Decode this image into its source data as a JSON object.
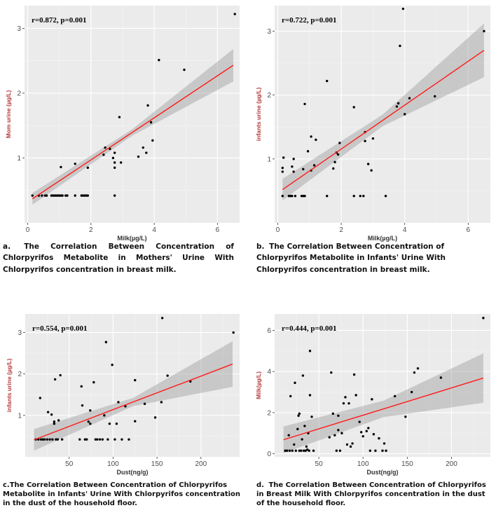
{
  "chart_data": [
    {
      "id": "a",
      "type": "scatter",
      "annotation": "r=0.872, p=0.001",
      "xlabel": "Milk(µg/L)",
      "ylabel": "Mom urine (µg/L)",
      "xlim": [
        -0.1,
        6.7
      ],
      "ylim": [
        0.0,
        3.35
      ],
      "xticks": [
        0,
        2,
        4,
        6
      ],
      "yticks": [
        1,
        2,
        3
      ],
      "fit": {
        "x0": 0.15,
        "y0": 0.37,
        "x1": 6.5,
        "y1": 2.43,
        "ci_x": [
          0.15,
          3.3,
          6.5
        ],
        "ci_half": [
          0.09,
          0.05,
          0.25
        ]
      },
      "points": [
        [
          0.15,
          0.42
        ],
        [
          0.35,
          0.42
        ],
        [
          0.45,
          0.42
        ],
        [
          0.55,
          0.42
        ],
        [
          0.6,
          0.42
        ],
        [
          0.75,
          0.42
        ],
        [
          0.8,
          0.42
        ],
        [
          0.85,
          0.42
        ],
        [
          0.9,
          0.42
        ],
        [
          0.95,
          0.42
        ],
        [
          1.0,
          0.42
        ],
        [
          1.05,
          0.42
        ],
        [
          1.1,
          0.42
        ],
        [
          1.2,
          0.42
        ],
        [
          1.25,
          0.42
        ],
        [
          1.5,
          0.42
        ],
        [
          1.7,
          0.42
        ],
        [
          1.75,
          0.42
        ],
        [
          1.8,
          0.42
        ],
        [
          1.85,
          0.42
        ],
        [
          1.9,
          0.42
        ],
        [
          2.75,
          0.42
        ],
        [
          1.05,
          0.86
        ],
        [
          1.5,
          0.91
        ],
        [
          1.9,
          0.85
        ],
        [
          2.4,
          1.05
        ],
        [
          2.45,
          1.16
        ],
        [
          2.6,
          1.14
        ],
        [
          2.7,
          1.0
        ],
        [
          2.75,
          0.93
        ],
        [
          2.75,
          0.85
        ],
        [
          2.75,
          1.08
        ],
        [
          2.9,
          1.63
        ],
        [
          2.95,
          0.93
        ],
        [
          3.5,
          1.02
        ],
        [
          3.65,
          1.16
        ],
        [
          3.75,
          1.08
        ],
        [
          3.8,
          1.81
        ],
        [
          3.9,
          1.55
        ],
        [
          3.95,
          1.27
        ],
        [
          4.15,
          2.51
        ],
        [
          4.95,
          2.36
        ],
        [
          6.55,
          3.22
        ]
      ],
      "caption_tag": "a.",
      "caption": "The Correlation Between Concentration of Chlorpyrifos Metabolite in Mothers' Urine With Chlorpyrifos concentration in breast milk."
    },
    {
      "id": "b",
      "type": "scatter",
      "annotation": "r=0.722, p=0.001",
      "xlabel": "Milk(µg/L)",
      "ylabel": "infants urine (µg/L)",
      "xlim": [
        -0.1,
        6.7
      ],
      "ylim": [
        0.0,
        3.4
      ],
      "xticks": [
        0,
        2,
        4,
        6
      ],
      "yticks": [
        1,
        2,
        3
      ],
      "fit": {
        "x0": 0.15,
        "y0": 0.52,
        "x1": 6.5,
        "y1": 2.7,
        "ci_x": [
          0.15,
          3.3,
          6.5
        ],
        "ci_half": [
          0.17,
          0.09,
          0.42
        ]
      },
      "points": [
        [
          0.15,
          0.42
        ],
        [
          0.15,
          0.8
        ],
        [
          0.15,
          0.86
        ],
        [
          0.18,
          1.02
        ],
        [
          0.35,
          0.42
        ],
        [
          0.4,
          0.42
        ],
        [
          0.45,
          0.42
        ],
        [
          0.45,
          0.88
        ],
        [
          0.5,
          0.8
        ],
        [
          0.5,
          1.0
        ],
        [
          0.55,
          0.42
        ],
        [
          0.75,
          0.42
        ],
        [
          0.8,
          0.42
        ],
        [
          0.85,
          0.42
        ],
        [
          0.8,
          0.84
        ],
        [
          0.85,
          1.86
        ],
        [
          0.95,
          1.12
        ],
        [
          1.05,
          0.82
        ],
        [
          1.05,
          1.35
        ],
        [
          1.15,
          0.9
        ],
        [
          1.2,
          1.3
        ],
        [
          1.55,
          0.42
        ],
        [
          1.55,
          2.22
        ],
        [
          1.75,
          0.85
        ],
        [
          1.8,
          0.95
        ],
        [
          1.85,
          1.1
        ],
        [
          1.9,
          1.07
        ],
        [
          1.95,
          1.25
        ],
        [
          2.4,
          1.81
        ],
        [
          2.4,
          0.42
        ],
        [
          2.6,
          0.42
        ],
        [
          2.7,
          0.42
        ],
        [
          2.75,
          1.28
        ],
        [
          2.75,
          1.42
        ],
        [
          2.85,
          0.92
        ],
        [
          2.95,
          0.82
        ],
        [
          3.0,
          1.32
        ],
        [
          3.4,
          0.42
        ],
        [
          3.75,
          1.82
        ],
        [
          3.8,
          1.87
        ],
        [
          3.85,
          2.77
        ],
        [
          3.95,
          3.35
        ],
        [
          4.0,
          1.7
        ],
        [
          4.15,
          1.95
        ],
        [
          4.95,
          1.98
        ],
        [
          6.5,
          3.0
        ]
      ],
      "caption_tag": "b.",
      "caption": "The Correlation Between Concentration of Chlorpyrifos Metabolite in Infants' Urine With Chlorpyrifos concentration in breast milk."
    },
    {
      "id": "c",
      "type": "scatter",
      "annotation": "r=0.554, p=0.001",
      "xlabel": "Dust(ng/g)",
      "ylabel": "infants urine (µg/L)",
      "xlim": [
        0,
        244
      ],
      "ylim": [
        0.0,
        3.45
      ],
      "xticks": [
        50,
        100,
        150,
        200
      ],
      "yticks": [
        1,
        2,
        3
      ],
      "fit": {
        "x0": 10,
        "y0": 0.41,
        "x1": 236,
        "y1": 2.24,
        "ci_x": [
          10,
          123,
          236
        ],
        "ci_half": [
          0.26,
          0.1,
          0.55
        ]
      },
      "points": [
        [
          12,
          0.42
        ],
        [
          15,
          0.42
        ],
        [
          17,
          1.42
        ],
        [
          18,
          0.42
        ],
        [
          20,
          0.42
        ],
        [
          22,
          0.42
        ],
        [
          25,
          0.42
        ],
        [
          26,
          1.08
        ],
        [
          28,
          0.42
        ],
        [
          30,
          1.02
        ],
        [
          31,
          0.42
        ],
        [
          33,
          0.8
        ],
        [
          33,
          0.85
        ],
        [
          34,
          1.87
        ],
        [
          35,
          0.42
        ],
        [
          37,
          0.42
        ],
        [
          38,
          0.88
        ],
        [
          40,
          1.97
        ],
        [
          42,
          0.42
        ],
        [
          62,
          0.42
        ],
        [
          64,
          1.7
        ],
        [
          65,
          1.24
        ],
        [
          68,
          0.42
        ],
        [
          70,
          0.42
        ],
        [
          72,
          0.85
        ],
        [
          74,
          0.8
        ],
        [
          74,
          1.12
        ],
        [
          78,
          1.8
        ],
        [
          80,
          0.42
        ],
        [
          82,
          0.42
        ],
        [
          85,
          0.42
        ],
        [
          88,
          0.42
        ],
        [
          90,
          1.0
        ],
        [
          92,
          2.77
        ],
        [
          94,
          0.42
        ],
        [
          96,
          0.8
        ],
        [
          99,
          2.22
        ],
        [
          102,
          0.42
        ],
        [
          104,
          0.8
        ],
        [
          106,
          1.32
        ],
        [
          110,
          0.42
        ],
        [
          114,
          1.22
        ],
        [
          118,
          0.42
        ],
        [
          125,
          0.86
        ],
        [
          125,
          1.85
        ],
        [
          136,
          1.28
        ],
        [
          148,
          0.95
        ],
        [
          155,
          1.32
        ],
        [
          156,
          3.35
        ],
        [
          162,
          1.96
        ],
        [
          188,
          1.82
        ],
        [
          237,
          3.0
        ]
      ],
      "caption_tag": "c.",
      "caption": "The Correlation Between Concentration of Chlorpyrifos Metabolite in Infants' Urine With Chlorpyrifos concentration in the dust of the  household floor."
    },
    {
      "id": "d",
      "type": "scatter",
      "annotation": "r=0.444, p=0.001",
      "xlabel": "Dust(ng/g)",
      "ylabel": "Milk(µg/L)",
      "xlim": [
        0,
        244
      ],
      "ylim": [
        -0.15,
        6.8
      ],
      "xticks": [
        50,
        100,
        150,
        200
      ],
      "yticks": [
        0,
        2,
        4,
        6
      ],
      "fit": {
        "x0": 10,
        "y0": 0.68,
        "x1": 236,
        "y1": 3.68,
        "ci_x": [
          10,
          123,
          236
        ],
        "ci_half": [
          0.65,
          0.4,
          1.2
        ]
      },
      "points": [
        [
          12,
          0.15
        ],
        [
          14,
          0.15
        ],
        [
          16,
          0.9
        ],
        [
          17,
          0.15
        ],
        [
          18,
          2.8
        ],
        [
          20,
          0.15
        ],
        [
          22,
          0.45
        ],
        [
          23,
          3.45
        ],
        [
          24,
          0.15
        ],
        [
          26,
          1.2
        ],
        [
          27,
          1.85
        ],
        [
          28,
          1.95
        ],
        [
          28,
          0.15
        ],
        [
          30,
          0.15
        ],
        [
          31,
          0.7
        ],
        [
          32,
          3.8
        ],
        [
          33,
          0.15
        ],
        [
          34,
          1.35
        ],
        [
          35,
          0.15
        ],
        [
          36,
          0.35
        ],
        [
          37,
          0.2
        ],
        [
          38,
          1.0
        ],
        [
          39,
          0.15
        ],
        [
          40,
          2.85
        ],
        [
          40,
          5.0
        ],
        [
          42,
          1.8
        ],
        [
          44,
          0.15
        ],
        [
          62,
          0.8
        ],
        [
          64,
          3.95
        ],
        [
          66,
          1.95
        ],
        [
          68,
          0.9
        ],
        [
          70,
          0.15
        ],
        [
          72,
          1.15
        ],
        [
          72,
          1.85
        ],
        [
          74,
          0.15
        ],
        [
          76,
          1.0
        ],
        [
          78,
          2.45
        ],
        [
          80,
          2.75
        ],
        [
          82,
          0.45
        ],
        [
          84,
          2.45
        ],
        [
          86,
          0.35
        ],
        [
          88,
          0.5
        ],
        [
          90,
          3.85
        ],
        [
          92,
          2.85
        ],
        [
          96,
          1.55
        ],
        [
          98,
          1.05
        ],
        [
          100,
          0.85
        ],
        [
          104,
          1.1
        ],
        [
          106,
          1.25
        ],
        [
          108,
          0.15
        ],
        [
          110,
          2.65
        ],
        [
          112,
          0.95
        ],
        [
          114,
          0.15
        ],
        [
          118,
          0.75
        ],
        [
          122,
          0.15
        ],
        [
          124,
          0.5
        ],
        [
          126,
          0.15
        ],
        [
          136,
          2.8
        ],
        [
          148,
          1.8
        ],
        [
          155,
          3.0
        ],
        [
          158,
          3.95
        ],
        [
          162,
          4.15
        ],
        [
          188,
          3.7
        ],
        [
          236,
          6.6
        ]
      ],
      "caption_tag": "d.",
      "caption": "The Correlation Between Concentration of Chlorpyrifos in Breast Milk With Chlorpyrifos concentration  in the dust of the  household floor."
    }
  ]
}
